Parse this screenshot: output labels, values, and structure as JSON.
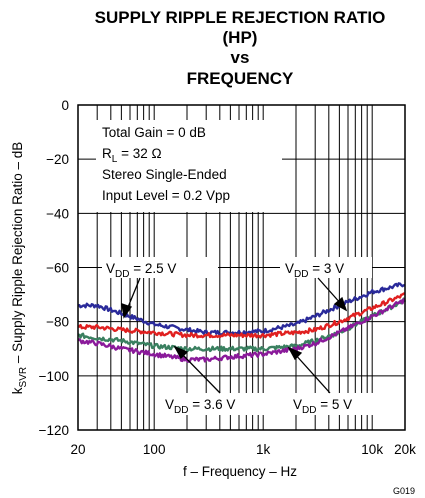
{
  "chart_data": {
    "type": "line",
    "title_lines": [
      "SUPPLY RIPPLE REJECTION RATIO",
      "(HP)",
      "vs",
      "FREQUENCY"
    ],
    "xlabel": "f – Frequency – Hz",
    "ylabel": "kₛᵥᵣ – Supply Ripple Rejection Ratio – dB",
    "xscale": "log",
    "xlim": [
      20,
      20000
    ],
    "ylim": [
      -120,
      0
    ],
    "x_ticks": [
      {
        "value": 20,
        "label": "20"
      },
      {
        "value": 100,
        "label": "100"
      },
      {
        "value": 1000,
        "label": "1k"
      },
      {
        "value": 10000,
        "label": "10k"
      },
      {
        "value": 20000,
        "label": "20k"
      }
    ],
    "y_ticks": [
      {
        "value": 0,
        "label": "0"
      },
      {
        "value": -20,
        "label": "−20"
      },
      {
        "value": -40,
        "label": "−40"
      },
      {
        "value": -60,
        "label": "−60"
      },
      {
        "value": -80,
        "label": "−80"
      },
      {
        "value": -100,
        "label": "−100"
      },
      {
        "value": -120,
        "label": "−120"
      }
    ],
    "grid": true,
    "conditions": [
      "Total Gain = 0 dB",
      "R_L = 32 Ω",
      "Stereo Single-Ended",
      "Input Level = 0.2 Vpp"
    ],
    "series": [
      {
        "name": "V_DD = 3 V",
        "color": "#2a2a9a",
        "x": [
          20,
          30,
          50,
          100,
          200,
          300,
          500,
          1000,
          2000,
          3000,
          5000,
          10000,
          20000
        ],
        "y": [
          -74,
          -74,
          -77,
          -81,
          -83,
          -84,
          -84,
          -83.5,
          -81,
          -78,
          -74,
          -69,
          -66
        ]
      },
      {
        "name": "V_DD = 2.5 V",
        "color": "#e02020",
        "x": [
          20,
          30,
          50,
          100,
          200,
          300,
          500,
          1000,
          2000,
          3000,
          5000,
          10000,
          20000
        ],
        "y": [
          -82,
          -82,
          -83,
          -84,
          -85,
          -85,
          -85,
          -85,
          -84,
          -83,
          -80,
          -75,
          -70
        ]
      },
      {
        "name": "V_DD = 3.6 V",
        "color": "#3a8060",
        "x": [
          20,
          30,
          50,
          100,
          200,
          300,
          500,
          1000,
          2000,
          3000,
          5000,
          10000,
          20000
        ],
        "y": [
          -85,
          -86,
          -87,
          -89,
          -90,
          -90,
          -90,
          -90,
          -89,
          -87,
          -84,
          -78,
          -72
        ]
      },
      {
        "name": "V_DD = 5 V",
        "color": "#8a1a9a",
        "x": [
          20,
          30,
          50,
          100,
          200,
          300,
          500,
          1000,
          2000,
          3000,
          5000,
          10000,
          20000
        ],
        "y": [
          -87,
          -88,
          -90,
          -92,
          -94,
          -94,
          -93,
          -92,
          -90,
          -88,
          -84,
          -78,
          -72
        ]
      }
    ],
    "annotations": [
      {
        "text": "V_DD = 2.5 V",
        "series": "V_DD = 2.5 V"
      },
      {
        "text": "V_DD = 3 V",
        "series": "V_DD = 3 V"
      },
      {
        "text": "V_DD = 3.6 V",
        "series": "V_DD = 3.6 V"
      },
      {
        "text": "V_DD = 5 V",
        "series": "V_DD = 5 V"
      }
    ],
    "figure_id": "G019"
  }
}
